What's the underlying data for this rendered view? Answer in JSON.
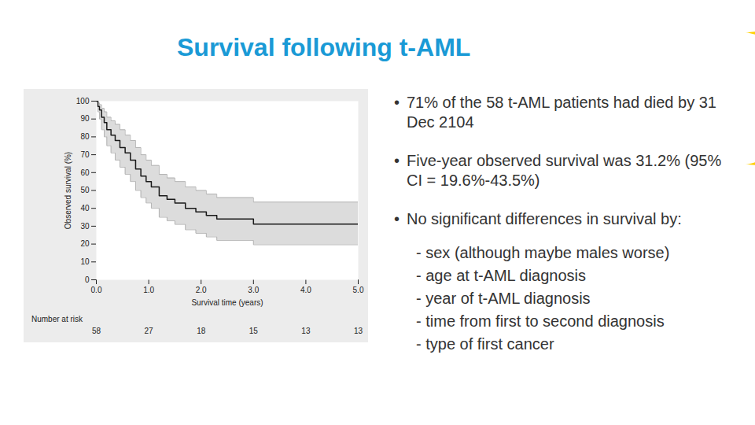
{
  "slide": {
    "title": "Survival following t-AML",
    "bullets": [
      {
        "text": "71% of the 58 t-AML patients had died by 31 Dec 2104"
      },
      {
        "text": "Five-year observed survival was 31.2% (95% CI = 19.6%-43.5%)"
      },
      {
        "text": "No significant differences in survival by:",
        "items": [
          "- sex (although maybe males worse)",
          "- age at t-AML diagnosis",
          "- year of t-AML diagnosis",
          "- time from first to second diagnosis",
          "- type of first cancer"
        ]
      }
    ]
  },
  "chart_data": {
    "type": "line",
    "line_style": "step",
    "x_label": "Survival time (years)",
    "y_label": "Observed survival (%)",
    "x": [
      0,
      0.03,
      0.06,
      0.1,
      0.15,
      0.2,
      0.28,
      0.36,
      0.45,
      0.55,
      0.65,
      0.75,
      0.85,
      0.95,
      1.05,
      1.2,
      1.35,
      1.5,
      1.7,
      1.9,
      2.1,
      2.3,
      3.0,
      5.0
    ],
    "series": [
      {
        "color": "#1a1a1a",
        "values": [
          100,
          97,
          95,
          91,
          88,
          84,
          81,
          78,
          74,
          71,
          67,
          62,
          58,
          55,
          52,
          47,
          45,
          43,
          40,
          38,
          36,
          34,
          31.2,
          31.2
        ],
        "ci_lower": [
          100,
          94,
          90,
          84,
          80,
          75,
          71,
          67,
          63,
          59,
          55,
          50,
          46,
          43,
          40,
          35,
          33,
          31,
          28,
          26,
          24,
          22,
          19.6,
          19.6
        ],
        "ci_upper": [
          100,
          99,
          98,
          96,
          94,
          91,
          89,
          87,
          84,
          81,
          78,
          74,
          70,
          67,
          64,
          59,
          57,
          55,
          52,
          50,
          48,
          46,
          43.5,
          43.5
        ],
        "ci_color": "#dcdcdc"
      }
    ],
    "xlim": [
      0,
      5
    ],
    "xticks": [
      0,
      1,
      2,
      3,
      4,
      5
    ],
    "ylim": [
      0,
      100
    ],
    "yticks": [
      0,
      10,
      20,
      30,
      40,
      50,
      60,
      70,
      80,
      90,
      100
    ],
    "grid": false,
    "number_at_risk": {
      "label": "Number at risk",
      "x": [
        0,
        1,
        2,
        3,
        4,
        5
      ],
      "values": [
        58,
        27,
        18,
        15,
        13,
        13
      ]
    }
  }
}
